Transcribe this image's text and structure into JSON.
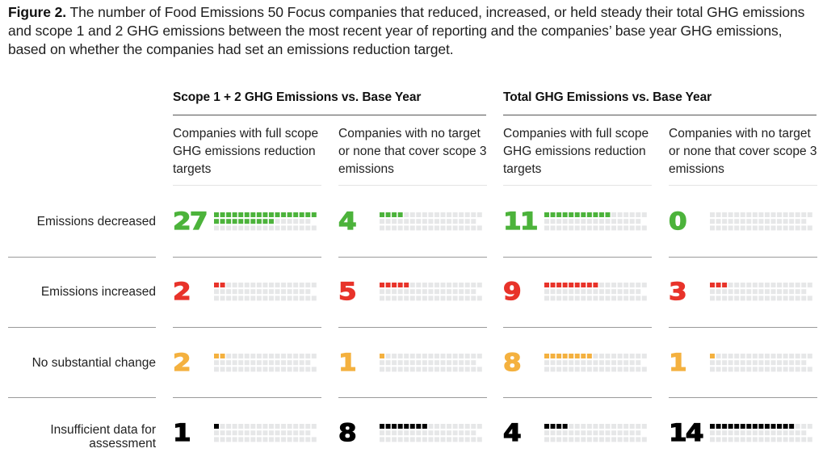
{
  "caption": {
    "label": "Figure 2.",
    "text": " The number of Food Emissions 50 Focus companies that reduced, increased, or held steady their total GHG emissions and scope 1 and 2 GHG emissions between the most recent year of reporting and the companies’ base year GHG emissions, based on whether the companies had set an emissions reduction target."
  },
  "colors": {
    "decreased": "#4cb33b",
    "increased": "#e8332a",
    "no_change": "#f4b13f",
    "insufficient": "#000000",
    "empty": "#e6e7e8"
  },
  "chart_data": {
    "type": "table",
    "title": "Figure 2. The number of Food Emissions 50 Focus companies that reduced, increased, or held steady their total GHG emissions and scope 1 and 2 GHG emissions between the most recent year of reporting and the companies’ base year GHG emissions, based on whether the companies had set an emissions reduction target.",
    "unit_total": 50,
    "groups": [
      {
        "title": "Scope 1 + 2 GHG Emissions vs. Base Year",
        "columns": [
          "Companies with full scope GHG emissions reduction targets",
          "Companies with no target or none that cover scope 3 emissions"
        ]
      },
      {
        "title": "Total GHG Emissions vs. Base Year",
        "columns": [
          "Companies with full scope GHG emissions reduction targets",
          "Companies with no target or none that cover scope 3 emissions"
        ]
      }
    ],
    "columns": [
      "Companies with full scope GHG emissions reduction targets",
      "Companies with no target or none that cover scope 3 emissions",
      "Companies with full scope GHG emissions reduction targets",
      "Companies with no target or none that cover scope 3 emissions"
    ],
    "rows": [
      {
        "label": "Emissions decreased",
        "key": "decreased",
        "values": [
          27,
          4,
          11,
          0
        ]
      },
      {
        "label": "Emissions increased",
        "key": "increased",
        "values": [
          2,
          5,
          9,
          3
        ]
      },
      {
        "label": "No substantial change",
        "key": "no_change",
        "values": [
          2,
          1,
          8,
          1
        ]
      },
      {
        "label": "Insufficient data for assessment",
        "key": "insufficient",
        "values": [
          1,
          8,
          4,
          14
        ]
      }
    ],
    "values_display": [
      [
        "27",
        "4",
        "11",
        "0"
      ],
      [
        "2",
        "5",
        "9",
        "3"
      ],
      [
        "2",
        "1",
        "8",
        "1"
      ],
      [
        "1",
        "8",
        "4",
        "14"
      ]
    ],
    "grid_rows": [
      17,
      16,
      17
    ]
  }
}
